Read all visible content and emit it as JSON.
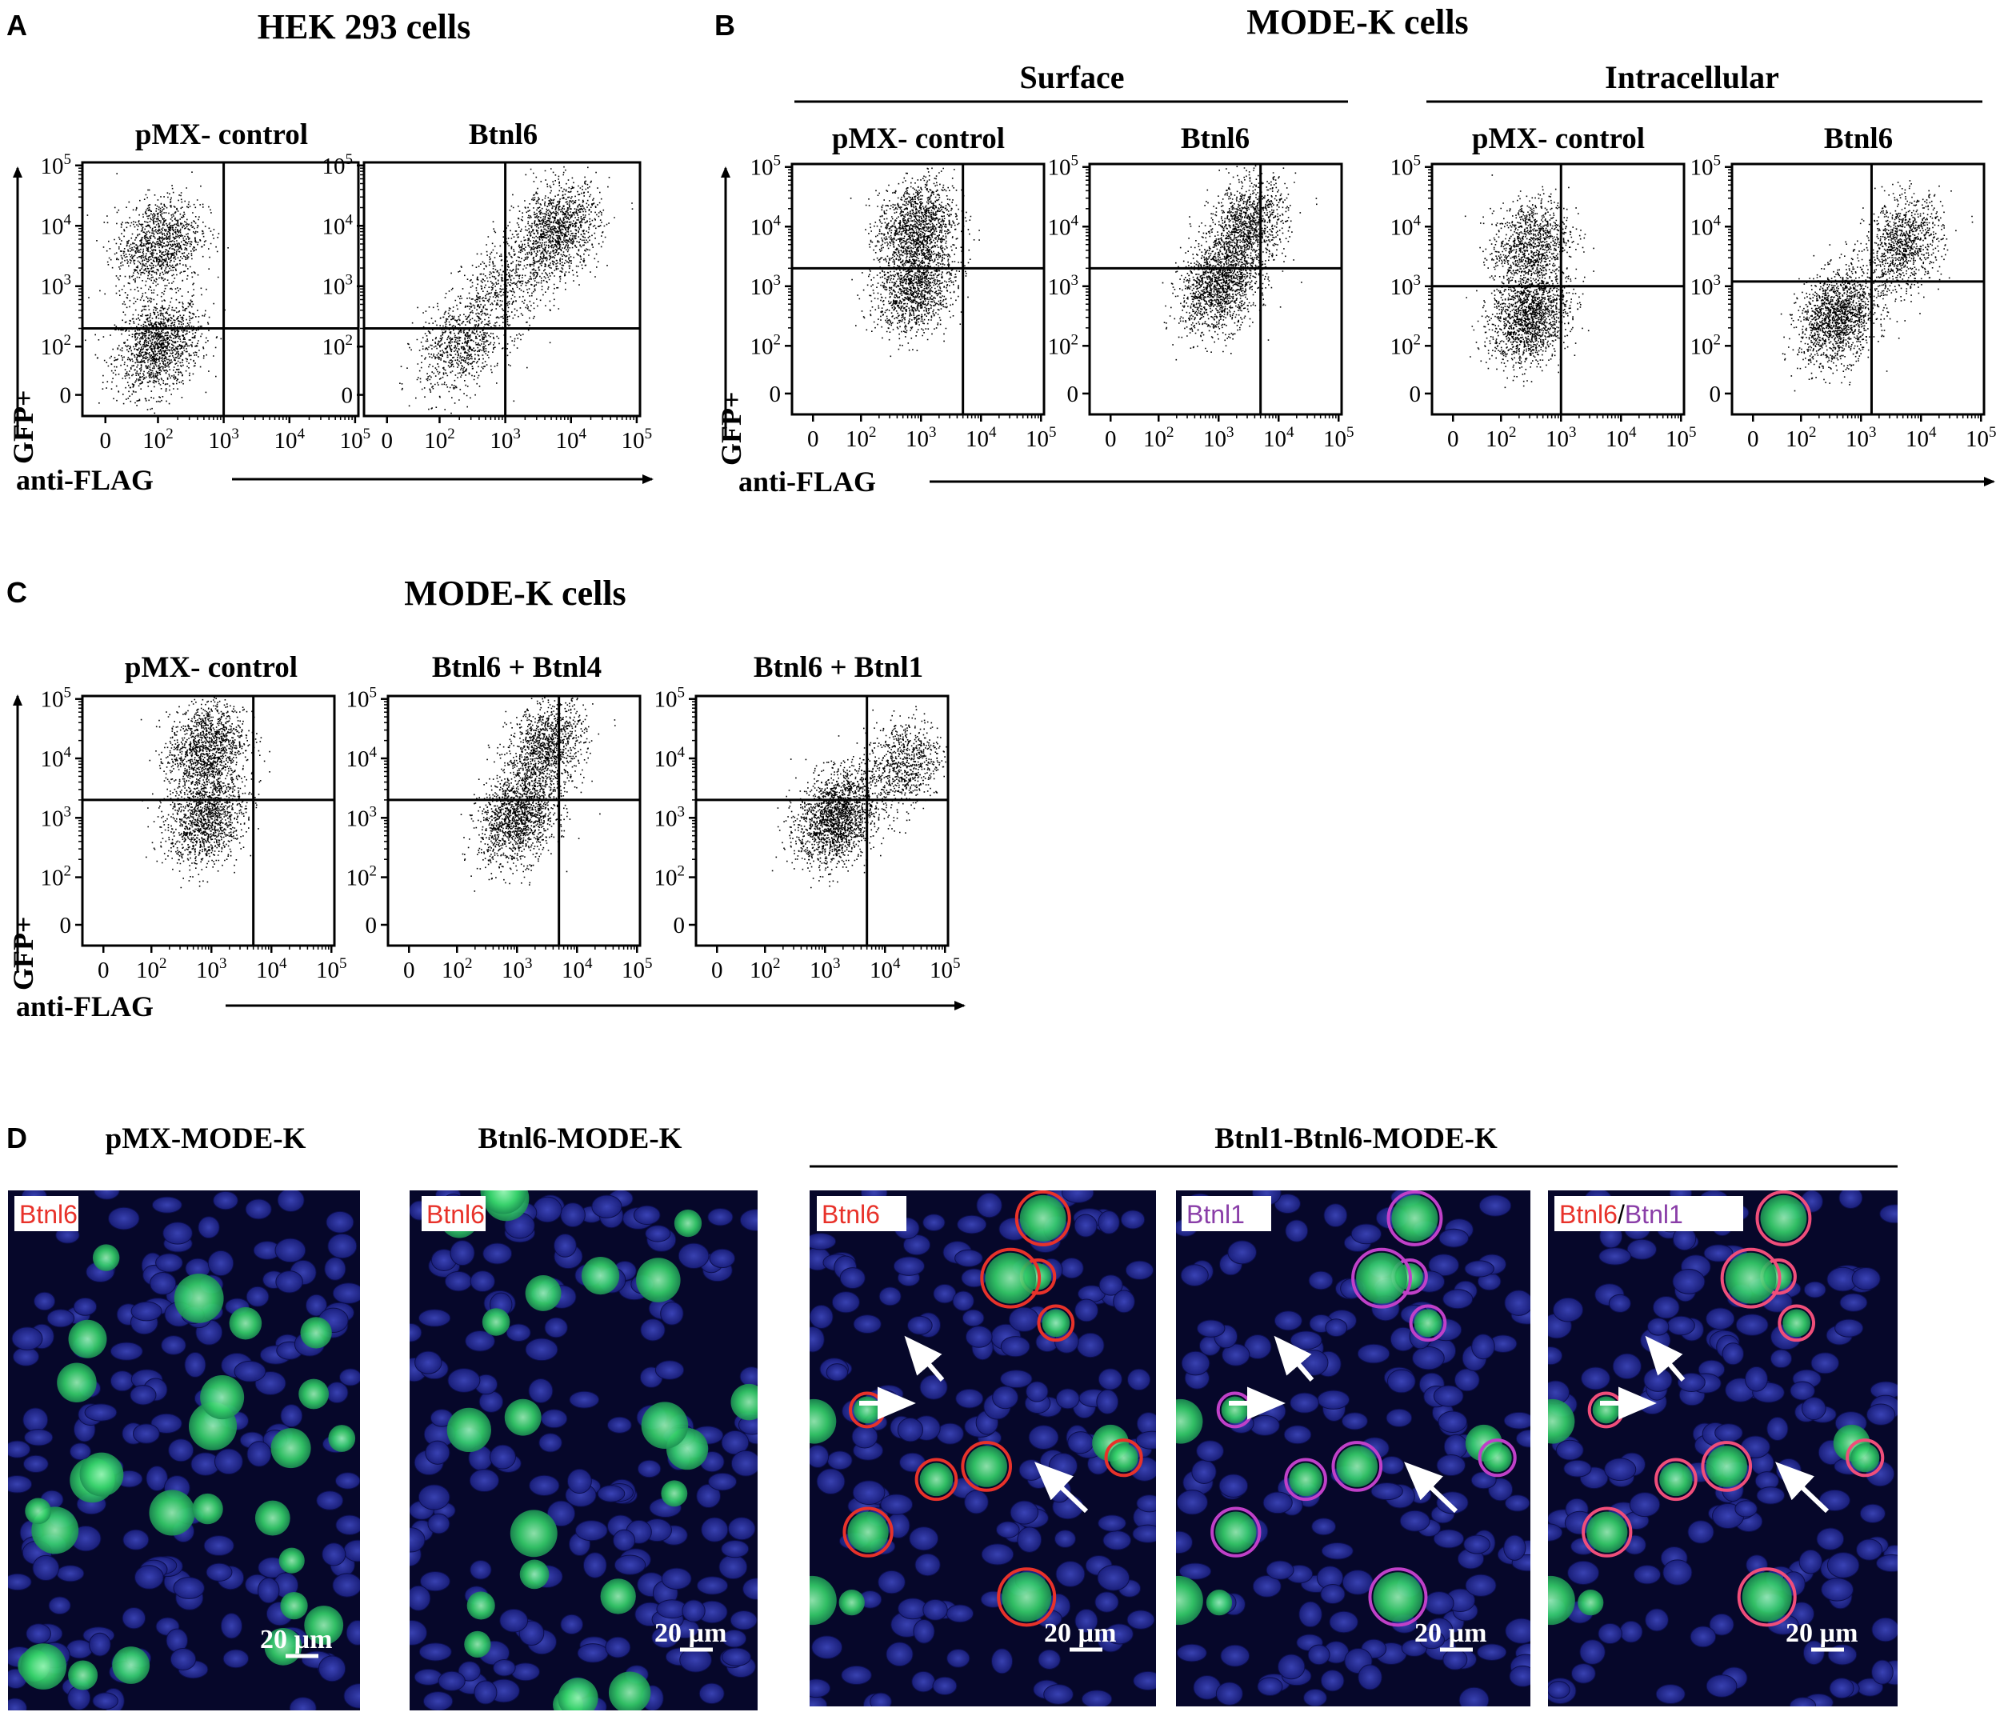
{
  "panels": {
    "A": {
      "letter": "A",
      "title": "HEK 293 cells",
      "x_axis": "anti-FLAG",
      "y_axis": "GFP+",
      "plots": [
        "pMX- control",
        "Btnl6"
      ]
    },
    "B": {
      "letter": "B",
      "title": "MODE-K cells",
      "groups": [
        "Surface",
        "Intracellular"
      ],
      "x_axis": "anti-FLAG",
      "y_axis": "GFP+",
      "plots": [
        "pMX- control",
        "Btnl6",
        "pMX- control",
        "Btnl6"
      ]
    },
    "C": {
      "letter": "C",
      "title": "MODE-K cells",
      "x_axis": "anti-FLAG",
      "y_axis": "GFP+",
      "plots": [
        "pMX- control",
        "Btnl6 + Btnl4",
        "Btnl6 + Btnl1"
      ]
    },
    "D": {
      "letter": "D",
      "titles": [
        "pMX-MODE-K",
        "Btnl6-MODE-K",
        "Btnl1-Btnl6-MODE-K"
      ],
      "tags": [
        "Btnl6",
        "Btnl6",
        "Btnl6",
        "Btnl1",
        "Btnl6",
        "Btnl1"
      ],
      "scale_bar": "20 µm",
      "colors": {
        "green": "#3fe07a",
        "nuclei": "#1a1f8c",
        "red": "#e8322a",
        "magenta": "#c040c8"
      }
    }
  },
  "axis_ticks": {
    "zero": "0",
    "base": "10",
    "exponents": [
      "2",
      "3",
      "4",
      "5"
    ]
  },
  "chart_data": [
    {
      "type": "scatter",
      "panel": "A",
      "title": "pMX- control",
      "xscale": "biexponential",
      "yscale": "biexponential",
      "xlim": [
        0,
        100000
      ],
      "ylim": [
        0,
        100000
      ],
      "gate": {
        "x": 1000,
        "y": 200
      },
      "populations": [
        {
          "x": 100,
          "y": 100,
          "share": 0.55
        },
        {
          "x": 100,
          "y": 5000,
          "share": 0.45
        }
      ]
    },
    {
      "type": "scatter",
      "panel": "A",
      "title": "Btnl6",
      "xscale": "biexponential",
      "yscale": "biexponential",
      "xlim": [
        0,
        100000
      ],
      "ylim": [
        0,
        100000
      ],
      "gate": {
        "x": 1000,
        "y": 200
      },
      "populations": [
        {
          "x": 200,
          "y": 100,
          "share": 0.3
        },
        {
          "x": 1000,
          "y": 1000,
          "share": 0.2
        },
        {
          "x": 6000,
          "y": 8000,
          "share": 0.5
        }
      ]
    },
    {
      "type": "scatter",
      "panel": "B",
      "title": "pMX- control",
      "xscale": "biexponential",
      "yscale": "biexponential",
      "xlim": [
        0,
        100000
      ],
      "ylim": [
        0,
        100000
      ],
      "gate": {
        "x": 5000,
        "y": 2000
      },
      "populations": [
        {
          "x": 800,
          "y": 1000,
          "share": 0.5
        },
        {
          "x": 800,
          "y": 10000,
          "share": 0.5
        }
      ]
    },
    {
      "type": "scatter",
      "panel": "B",
      "title": "Btnl6",
      "xscale": "biexponential",
      "yscale": "biexponential",
      "xlim": [
        0,
        100000
      ],
      "ylim": [
        0,
        100000
      ],
      "gate": {
        "x": 5000,
        "y": 2000
      },
      "populations": [
        {
          "x": 1000,
          "y": 1000,
          "share": 0.55
        },
        {
          "x": 3000,
          "y": 10000,
          "share": 0.45
        }
      ]
    },
    {
      "type": "scatter",
      "panel": "B",
      "title": "pMX- control",
      "xscale": "biexponential",
      "yscale": "biexponential",
      "xlim": [
        0,
        100000
      ],
      "ylim": [
        0,
        100000
      ],
      "gate": {
        "x": 1000,
        "y": 1000
      },
      "populations": [
        {
          "x": 300,
          "y": 300,
          "share": 0.6
        },
        {
          "x": 300,
          "y": 5000,
          "share": 0.4
        }
      ]
    },
    {
      "type": "scatter",
      "panel": "B",
      "title": "Btnl6",
      "xscale": "biexponential",
      "yscale": "biexponential",
      "xlim": [
        0,
        100000
      ],
      "ylim": [
        0,
        100000
      ],
      "gate": {
        "x": 1500,
        "y": 1200
      },
      "populations": [
        {
          "x": 400,
          "y": 300,
          "share": 0.6
        },
        {
          "x": 5000,
          "y": 5000,
          "share": 0.4
        }
      ]
    },
    {
      "type": "scatter",
      "panel": "C",
      "title": "pMX- control",
      "xscale": "biexponential",
      "yscale": "biexponential",
      "xlim": [
        0,
        100000
      ],
      "ylim": [
        0,
        100000
      ],
      "gate": {
        "x": 5000,
        "y": 2000
      },
      "populations": [
        {
          "x": 800,
          "y": 1000,
          "share": 0.5
        },
        {
          "x": 800,
          "y": 15000,
          "share": 0.5
        }
      ]
    },
    {
      "type": "scatter",
      "panel": "C",
      "title": "Btnl6 + Btnl4",
      "xscale": "biexponential",
      "yscale": "biexponential",
      "xlim": [
        0,
        100000
      ],
      "ylim": [
        0,
        100000
      ],
      "gate": {
        "x": 5000,
        "y": 2000
      },
      "populations": [
        {
          "x": 1000,
          "y": 1000,
          "share": 0.55
        },
        {
          "x": 3000,
          "y": 15000,
          "share": 0.45
        }
      ]
    },
    {
      "type": "scatter",
      "panel": "C",
      "title": "Btnl6 + Btnl1",
      "xscale": "biexponential",
      "yscale": "biexponential",
      "xlim": [
        0,
        100000
      ],
      "ylim": [
        0,
        100000
      ],
      "gate": {
        "x": 5000,
        "y": 2000
      },
      "populations": [
        {
          "x": 1500,
          "y": 1000,
          "share": 0.7
        },
        {
          "x": 20000,
          "y": 8000,
          "share": 0.3
        }
      ]
    }
  ]
}
